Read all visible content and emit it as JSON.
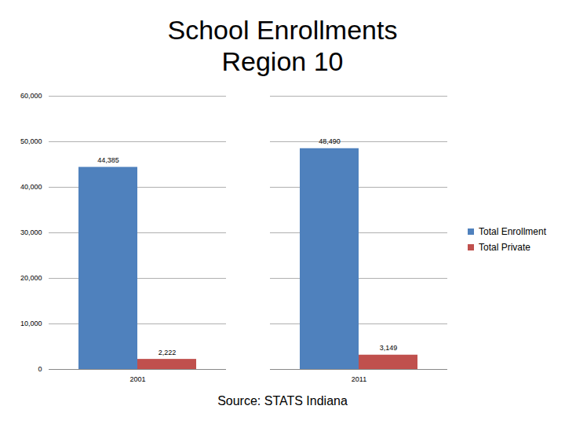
{
  "chart_data": {
    "type": "bar",
    "title": "School Enrollments Region 10",
    "categories": [
      "2001",
      "2011"
    ],
    "series": [
      {
        "name": "Total Enrollment",
        "color": "#4f81bd",
        "values": [
          44385,
          48490
        ],
        "value_labels": [
          "44,385",
          "48,490"
        ]
      },
      {
        "name": "Total Private",
        "color": "#c0504d",
        "values": [
          2222,
          3149
        ],
        "value_labels": [
          "2,222",
          "3,149"
        ]
      }
    ],
    "ylim": [
      0,
      60000
    ],
    "yticks": [
      0,
      {
        "value": 10000,
        "label": "10,000"
      },
      {
        "value": 20000,
        "label": "20,000"
      },
      {
        "value": 30000,
        "label": "30,000"
      },
      {
        "value": 40000,
        "label": "40,000"
      },
      {
        "value": 50000,
        "label": "50,000"
      },
      {
        "value": 60000,
        "label": "60,000"
      }
    ],
    "grid": true,
    "legend": "right",
    "data_labels": true,
    "annotations": [
      "Source:  STATS Indiana"
    ]
  }
}
